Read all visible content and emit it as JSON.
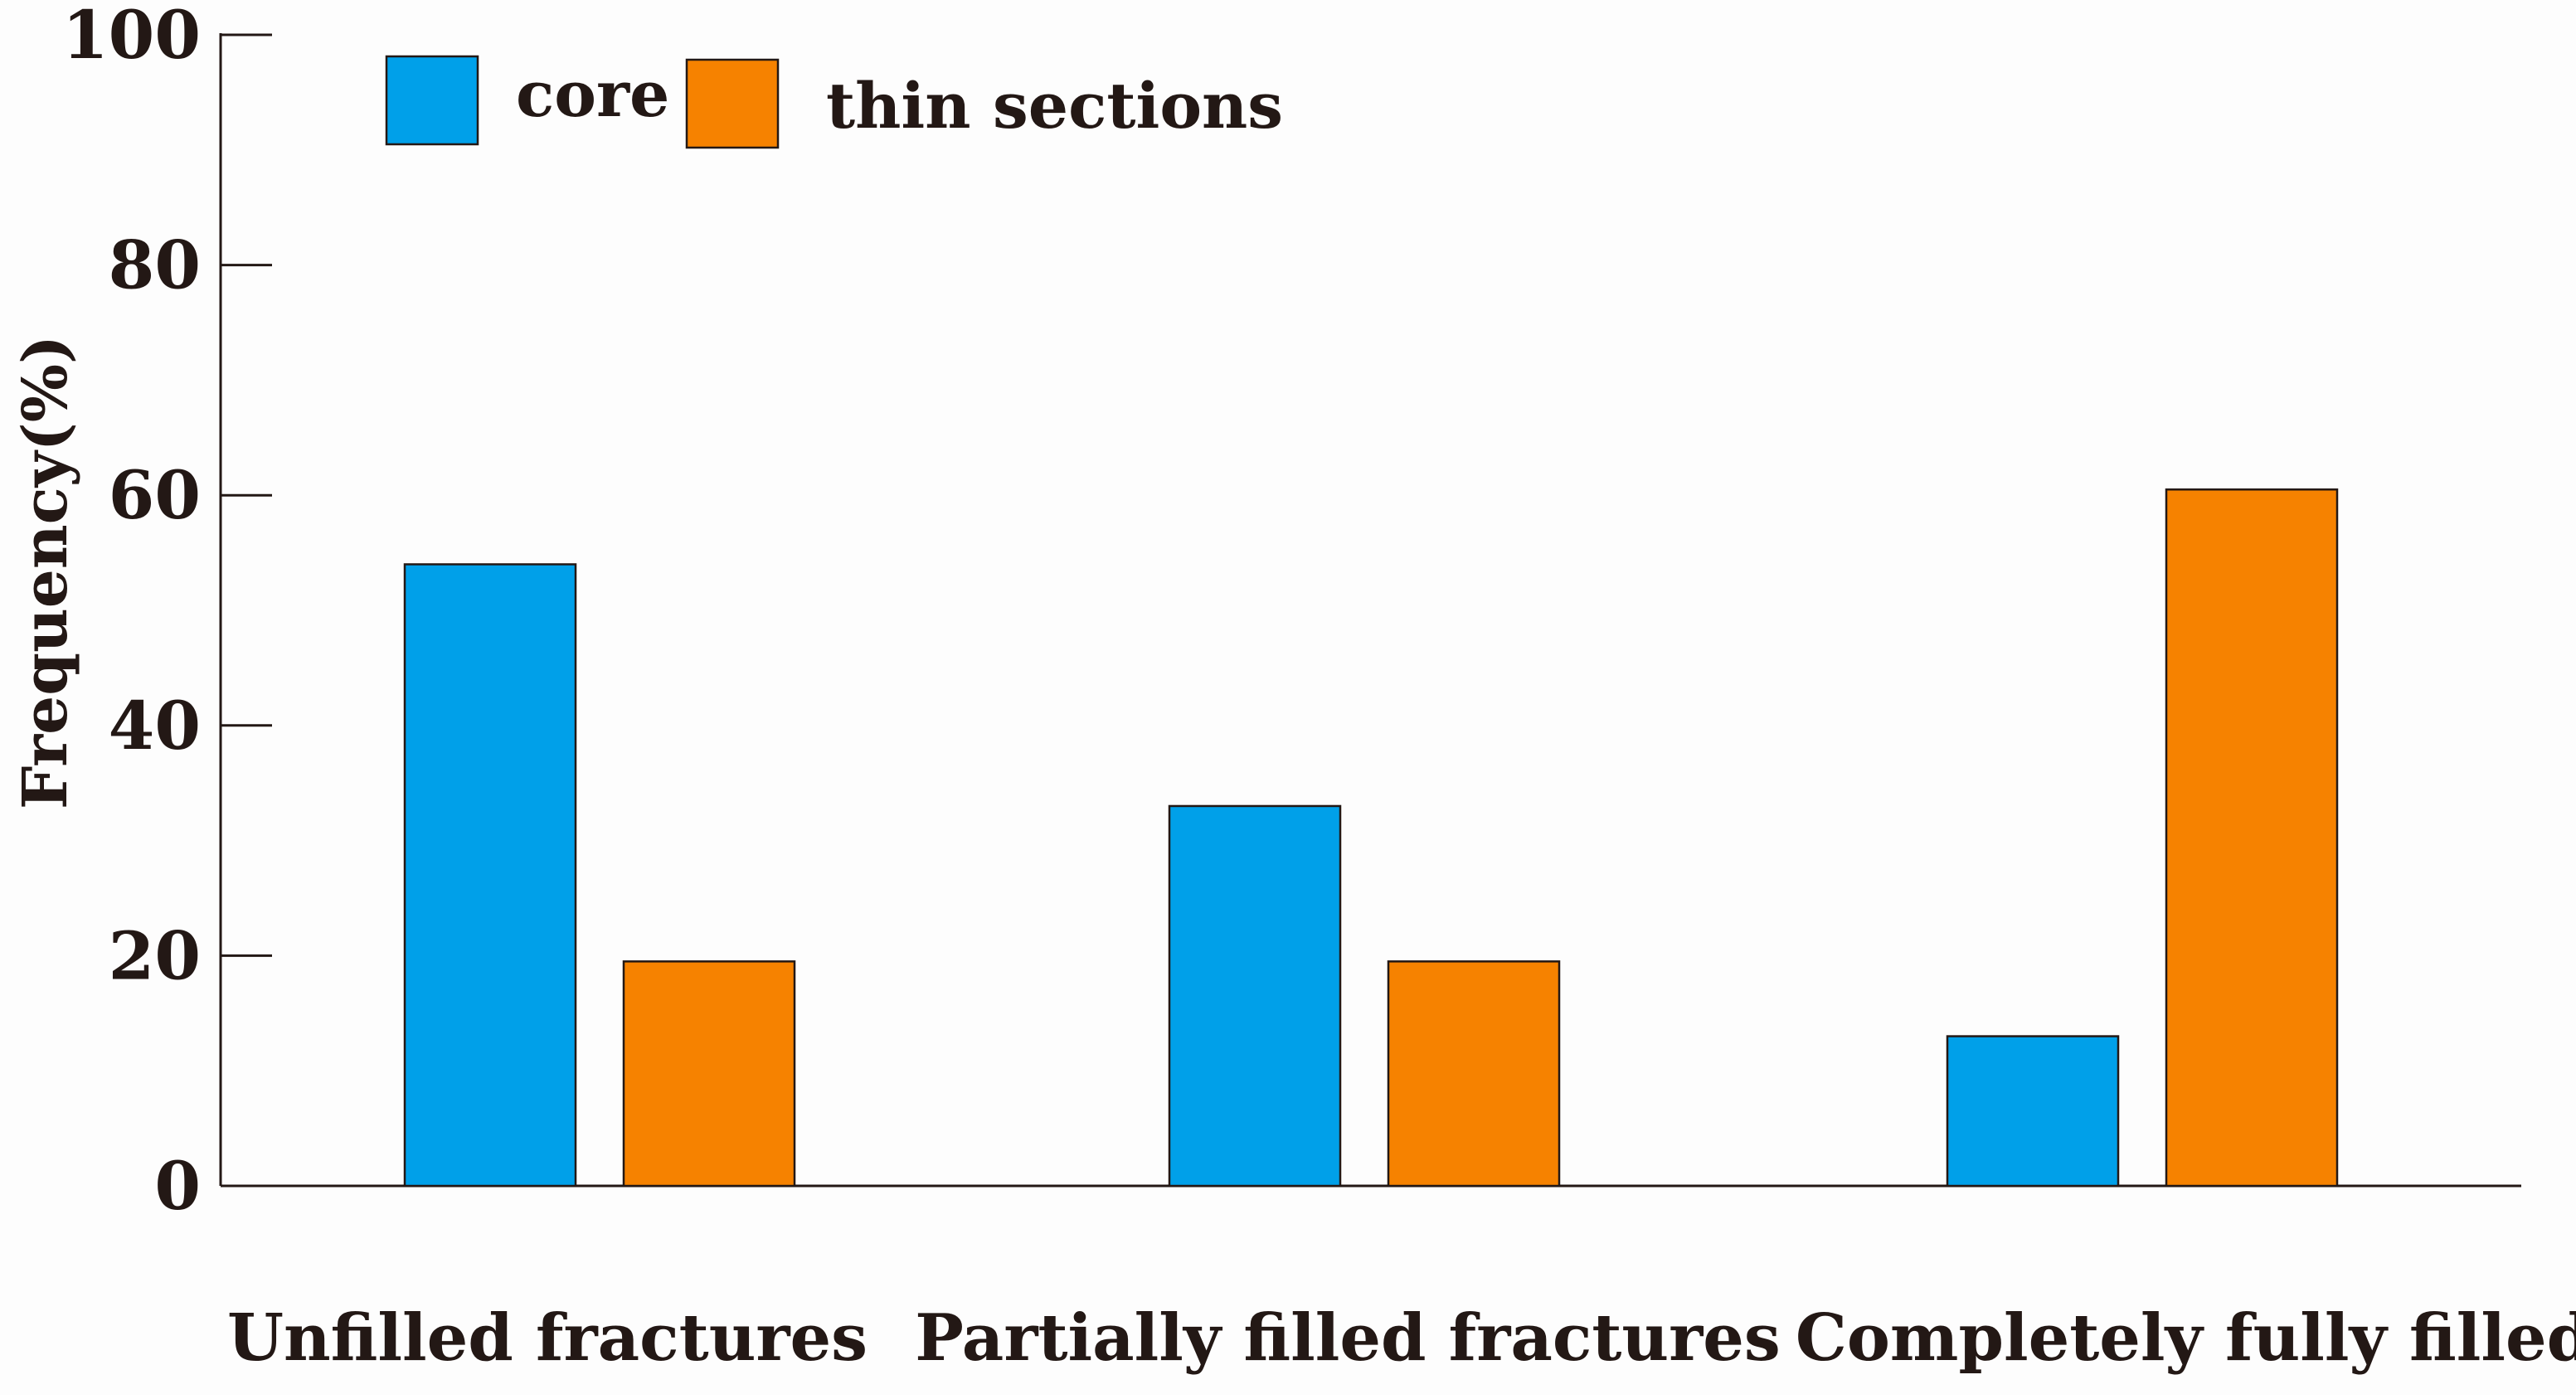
{
  "chart_data": {
    "type": "bar",
    "title": "",
    "xlabel": "",
    "ylabel": "Frequency(%)",
    "ylim": [
      0,
      100
    ],
    "yticks": [
      "0",
      "20",
      "40",
      "60",
      "80",
      "100"
    ],
    "categories": [
      "Unfilled fractures",
      "Partially filled fractures",
      "Completely fully filled"
    ],
    "series": [
      {
        "name": "core",
        "color": "#00a0e9",
        "values": [
          54,
          33,
          13
        ]
      },
      {
        "name": "thin sections",
        "color": "#f68200",
        "values": [
          19.5,
          19.5,
          60.5
        ]
      }
    ],
    "legend_position": "top-left",
    "grid": false
  }
}
